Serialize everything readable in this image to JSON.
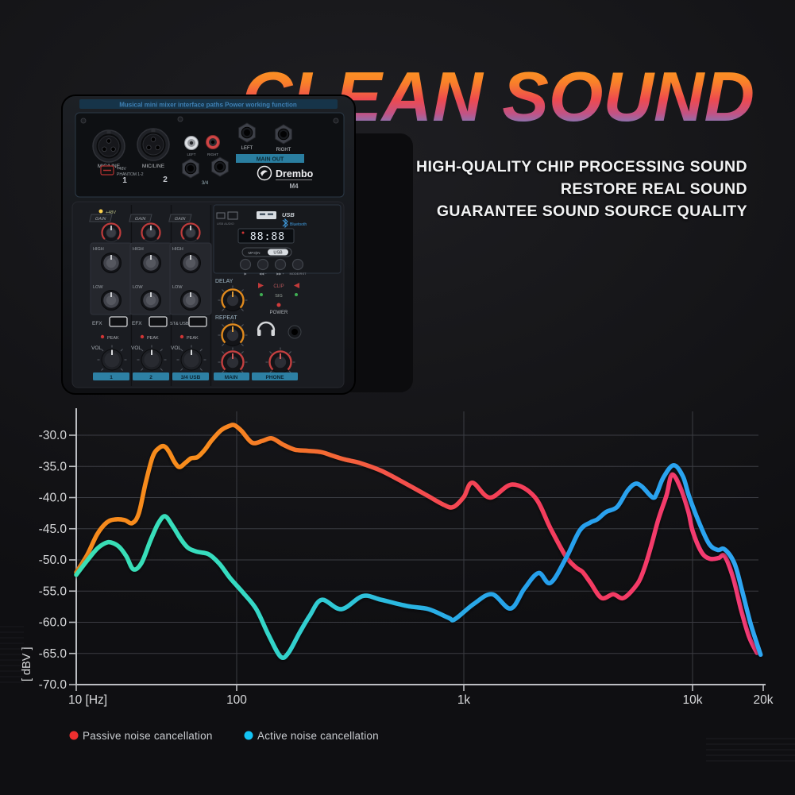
{
  "title": {
    "text": "CLEAN SOUND",
    "gradient": [
      [
        "0%",
        "#ffa71d"
      ],
      [
        "32%",
        "#f98129"
      ],
      [
        "54%",
        "#ee4a50"
      ],
      [
        "72%",
        "#c05386"
      ],
      [
        "100%",
        "#35a7f3"
      ]
    ]
  },
  "tagline": {
    "line1": "HIGH-QUALITY CHIP PROCESSING SOUND",
    "line2": "RESTORE REAL SOUND",
    "line3": "GUARANTEE SOUND SOURCE QUALITY"
  },
  "mixer": {
    "strip_text": "Musical mini mixer interface paths Power working function",
    "brand": "Drembo",
    "model": "M4",
    "mic_line": "MIC/LINE",
    "ch1": "1",
    "ch2": "2",
    "phantom1": "+48V",
    "phantom2": "PHANTOM 1-2",
    "rca_left": "LEFT",
    "rca_right": "RIGHT",
    "jack34": "3/4",
    "left": "LEFT",
    "right": "RIGHT",
    "main_out": "MAIN OUT",
    "plus48": "+48V",
    "gain": "GAIN",
    "high": "HIGH",
    "low": "LOW",
    "efx": "EFX",
    "st_usb": "ST& USB",
    "peak": "PEAK",
    "vol": "VOL",
    "usb_audio": "USB AUDIO",
    "usb": "USB",
    "bluetooth": "Bluetooth",
    "display": "88:88",
    "mp3": "MP3|IN",
    "usb_chip": "USB",
    "transport": [
      "▶",
      "◀◀ −",
      "▶▶ +",
      "MODE/RST"
    ],
    "delay": "DELAY",
    "repeat": "REPEAT",
    "clip": "CLIP",
    "sig": "SIG",
    "power": "POWER",
    "bottom_bars": [
      "1",
      "2",
      "3/4 USB",
      "MAIN",
      "PHONE"
    ]
  },
  "chart_data": {
    "type": "line",
    "title": "",
    "x_axis": {
      "unit": "Hz",
      "scale": "log",
      "range": [
        10,
        20000
      ],
      "ticks": [
        {
          "f": 10,
          "label": "10 [Hz]",
          "grid": false
        },
        {
          "f": 100,
          "label": "100",
          "grid": true
        },
        {
          "f": 1000,
          "label": "1k",
          "grid": true
        },
        {
          "f": 10000,
          "label": "10k",
          "grid": true
        },
        {
          "f": 20000,
          "label": "20k",
          "grid": false
        }
      ]
    },
    "y_axis": {
      "label": "[ dBV ]",
      "unit": "dBV",
      "min": -70,
      "max": -30,
      "tick_step": 5,
      "ticks": [
        -30,
        -35,
        -40,
        -45,
        -50,
        -55,
        -60,
        -65,
        -70
      ]
    },
    "grid": true,
    "legend_position": "bottom-left",
    "series": [
      {
        "name": "Passive noise cancellation",
        "legend_color": "#ee2f2f",
        "gradient": [
          [
            "0%",
            "#f6891d"
          ],
          [
            "18%",
            "#f88d1e"
          ],
          [
            "33%",
            "#f4712c"
          ],
          [
            "46%",
            "#f4524a"
          ],
          [
            "60%",
            "#f44156"
          ],
          [
            "75%",
            "#f43a62"
          ],
          [
            "100%",
            "#f43b78"
          ]
        ],
        "points": [
          [
            10,
            -52.0
          ],
          [
            11.7,
            -49.2
          ],
          [
            13.5,
            -45.9
          ],
          [
            15.5,
            -44.0
          ],
          [
            17.5,
            -43.5
          ],
          [
            20,
            -43.6
          ],
          [
            22.3,
            -44.1
          ],
          [
            24.5,
            -42.6
          ],
          [
            27,
            -37.8
          ],
          [
            30,
            -33.4
          ],
          [
            33,
            -32.0
          ],
          [
            35.5,
            -31.8
          ],
          [
            38,
            -32.7
          ],
          [
            41,
            -34.3
          ],
          [
            44,
            -35.1
          ],
          [
            48,
            -34.4
          ],
          [
            52,
            -33.7
          ],
          [
            57,
            -33.5
          ],
          [
            63,
            -32.4
          ],
          [
            70,
            -30.8
          ],
          [
            80,
            -29.2
          ],
          [
            90,
            -28.5
          ],
          [
            97,
            -28.4
          ],
          [
            105,
            -29.3
          ],
          [
            117,
            -31.2
          ],
          [
            130,
            -30.9
          ],
          [
            143,
            -30.5
          ],
          [
            160,
            -31.5
          ],
          [
            180,
            -32.3
          ],
          [
            205,
            -32.5
          ],
          [
            235,
            -32.7
          ],
          [
            265,
            -33.3
          ],
          [
            300,
            -33.9
          ],
          [
            345,
            -34.4
          ],
          [
            433,
            -35.7
          ],
          [
            551,
            -37.7
          ],
          [
            685,
            -39.6
          ],
          [
            820,
            -41.2
          ],
          [
            900,
            -41.5
          ],
          [
            1000,
            -39.9
          ],
          [
            1090,
            -37.6
          ],
          [
            1300,
            -40.0
          ],
          [
            1630,
            -37.9
          ],
          [
            2040,
            -39.9
          ],
          [
            2390,
            -44.9
          ],
          [
            2790,
            -49.4
          ],
          [
            3090,
            -51.2
          ],
          [
            3300,
            -51.9
          ],
          [
            3570,
            -53.6
          ],
          [
            4000,
            -56.1
          ],
          [
            4500,
            -55.5
          ],
          [
            5000,
            -56.1
          ],
          [
            5750,
            -53.8
          ],
          [
            6160,
            -51.3
          ],
          [
            6600,
            -47.7
          ],
          [
            7100,
            -43.4
          ],
          [
            7700,
            -39.6
          ],
          [
            8130,
            -36.3
          ],
          [
            8870,
            -38.5
          ],
          [
            9590,
            -42.3
          ],
          [
            10000,
            -45.3
          ],
          [
            10900,
            -48.7
          ],
          [
            11800,
            -49.8
          ],
          [
            12900,
            -49.7
          ],
          [
            13700,
            -49.4
          ],
          [
            14900,
            -52.9
          ],
          [
            16100,
            -58.0
          ],
          [
            17400,
            -62.3
          ],
          [
            18800,
            -64.9
          ]
        ]
      },
      {
        "name": "Active noise cancellation",
        "legend_color": "#13c3f4",
        "gradient": [
          [
            "0%",
            "#3adfb3"
          ],
          [
            "22%",
            "#36dcc0"
          ],
          [
            "38%",
            "#2fc8d6"
          ],
          [
            "52%",
            "#2aaee6"
          ],
          [
            "68%",
            "#279fec"
          ],
          [
            "100%",
            "#2ea6f2"
          ]
        ],
        "points": [
          [
            10,
            -52.4
          ],
          [
            11.7,
            -50.1
          ],
          [
            13.5,
            -48.2
          ],
          [
            15.2,
            -47.3
          ],
          [
            16.5,
            -47.2
          ],
          [
            18.5,
            -47.9
          ],
          [
            20.5,
            -49.4
          ],
          [
            22.7,
            -51.5
          ],
          [
            25.5,
            -50.5
          ],
          [
            29,
            -46.9
          ],
          [
            32.5,
            -44.1
          ],
          [
            35.8,
            -43.0
          ],
          [
            40,
            -44.6
          ],
          [
            45,
            -46.7
          ],
          [
            50,
            -48.1
          ],
          [
            57,
            -48.7
          ],
          [
            67,
            -49.1
          ],
          [
            78,
            -50.6
          ],
          [
            91,
            -52.9
          ],
          [
            107,
            -55.3
          ],
          [
            122,
            -57.9
          ],
          [
            138,
            -62.0
          ],
          [
            156,
            -65.5
          ],
          [
            169,
            -64.9
          ],
          [
            189,
            -61.7
          ],
          [
            210,
            -58.9
          ],
          [
            237,
            -56.4
          ],
          [
            289,
            -57.9
          ],
          [
            359,
            -55.8
          ],
          [
            433,
            -56.4
          ],
          [
            564,
            -57.4
          ],
          [
            700,
            -57.9
          ],
          [
            858,
            -59.3
          ],
          [
            914,
            -59.5
          ],
          [
            1110,
            -57.0
          ],
          [
            1330,
            -55.5
          ],
          [
            1600,
            -57.8
          ],
          [
            1840,
            -54.6
          ],
          [
            2120,
            -52.1
          ],
          [
            2390,
            -53.7
          ],
          [
            2790,
            -49.8
          ],
          [
            3210,
            -45.3
          ],
          [
            3570,
            -44.0
          ],
          [
            3830,
            -43.5
          ],
          [
            4190,
            -42.3
          ],
          [
            4680,
            -41.5
          ],
          [
            5190,
            -38.9
          ],
          [
            5600,
            -37.8
          ],
          [
            6000,
            -38.2
          ],
          [
            6700,
            -40.0
          ],
          [
            7000,
            -39.2
          ],
          [
            7450,
            -36.8
          ],
          [
            8260,
            -34.8
          ],
          [
            9080,
            -36.6
          ],
          [
            9660,
            -39.8
          ],
          [
            10800,
            -44.5
          ],
          [
            11800,
            -47.5
          ],
          [
            12800,
            -48.4
          ],
          [
            13700,
            -48.3
          ],
          [
            15100,
            -50.6
          ],
          [
            16300,
            -55.1
          ],
          [
            17700,
            -60.3
          ],
          [
            19500,
            -65.2
          ]
        ]
      }
    ]
  },
  "legend": {
    "items": [
      {
        "label": "Passive noise cancellation",
        "color": "#ee2f2f"
      },
      {
        "label": "Active noise cancellation",
        "color": "#13c3f4"
      }
    ]
  }
}
